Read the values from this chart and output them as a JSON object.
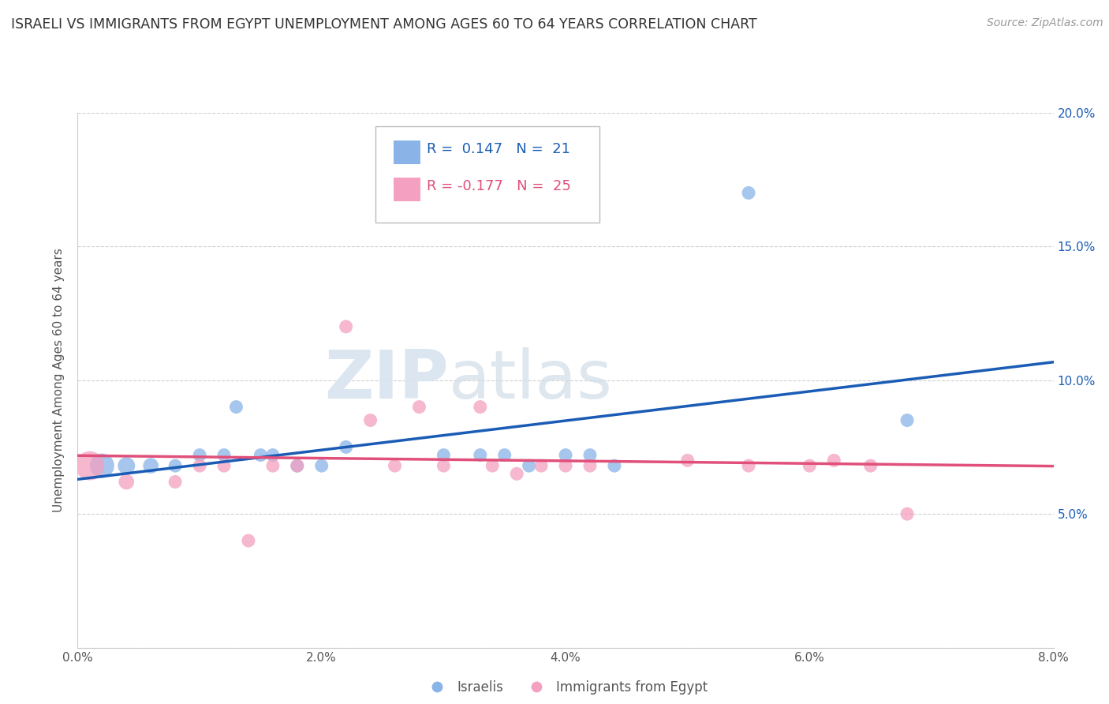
{
  "title": "ISRAELI VS IMMIGRANTS FROM EGYPT UNEMPLOYMENT AMONG AGES 60 TO 64 YEARS CORRELATION CHART",
  "source": "Source: ZipAtlas.com",
  "ylabel": "Unemployment Among Ages 60 to 64 years",
  "xlim": [
    0.0,
    0.08
  ],
  "ylim": [
    0.0,
    0.2
  ],
  "ytick_labels": [
    "",
    "5.0%",
    "10.0%",
    "15.0%",
    "20.0%"
  ],
  "ytick_vals": [
    0.0,
    0.05,
    0.1,
    0.15,
    0.2
  ],
  "xtick_labels": [
    "0.0%",
    "2.0%",
    "4.0%",
    "6.0%",
    "8.0%"
  ],
  "xtick_vals": [
    0.0,
    0.02,
    0.04,
    0.06,
    0.08
  ],
  "israelis_R": "0.147",
  "israelis_N": "21",
  "egypt_R": "-0.177",
  "egypt_N": "25",
  "israelis_color": "#8ab4e8",
  "egypt_color": "#f4a0c0",
  "israelis_line_color": "#1a5cb5",
  "egypt_line_color": "#e0507a",
  "watermark_zip": "ZIP",
  "watermark_atlas": "atlas",
  "israelis_x": [
    0.002,
    0.004,
    0.006,
    0.008,
    0.01,
    0.012,
    0.013,
    0.015,
    0.016,
    0.018,
    0.02,
    0.022,
    0.03,
    0.033,
    0.035,
    0.037,
    0.04,
    0.042,
    0.044,
    0.055,
    0.068
  ],
  "israelis_y": [
    0.068,
    0.068,
    0.068,
    0.068,
    0.072,
    0.072,
    0.09,
    0.072,
    0.072,
    0.068,
    0.068,
    0.075,
    0.072,
    0.072,
    0.072,
    0.068,
    0.072,
    0.072,
    0.068,
    0.17,
    0.085
  ],
  "egypt_x": [
    0.001,
    0.004,
    0.008,
    0.01,
    0.012,
    0.014,
    0.016,
    0.018,
    0.022,
    0.024,
    0.026,
    0.028,
    0.03,
    0.033,
    0.034,
    0.036,
    0.038,
    0.04,
    0.042,
    0.05,
    0.055,
    0.06,
    0.062,
    0.065,
    0.068
  ],
  "egypt_y": [
    0.068,
    0.062,
    0.062,
    0.068,
    0.068,
    0.04,
    0.068,
    0.068,
    0.12,
    0.085,
    0.068,
    0.09,
    0.068,
    0.09,
    0.068,
    0.065,
    0.068,
    0.068,
    0.068,
    0.07,
    0.068,
    0.068,
    0.07,
    0.068,
    0.05
  ],
  "israelis_bubble_size": [
    500,
    250,
    200,
    150,
    150,
    150,
    150,
    150,
    150,
    150,
    150,
    150,
    150,
    150,
    150,
    150,
    150,
    150,
    150,
    150,
    150
  ],
  "egypt_bubble_size": [
    700,
    200,
    150,
    150,
    150,
    150,
    150,
    150,
    150,
    150,
    150,
    150,
    150,
    150,
    150,
    150,
    150,
    150,
    150,
    150,
    150,
    150,
    150,
    150,
    150
  ],
  "background_color": "#ffffff",
  "grid_color": "#d0d0d0"
}
